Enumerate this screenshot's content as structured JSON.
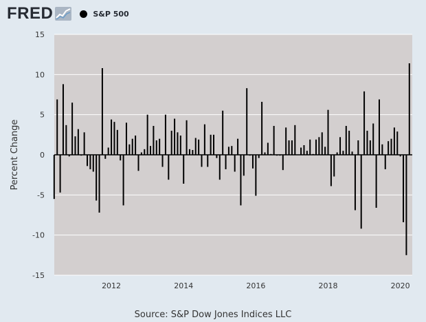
{
  "header": {
    "brand": "FRED",
    "legend_label": "S&P 500"
  },
  "source": "Source: S&P Dow Jones Indices LLC",
  "chart_data": {
    "type": "bar",
    "ylabel": "Percent Change",
    "ylim": [
      -15,
      15
    ],
    "yticks": [
      15,
      10,
      5,
      0,
      -5,
      -10,
      -15
    ],
    "xticks": [
      {
        "label": "2012",
        "at": 2012
      },
      {
        "label": "2014",
        "at": 2014
      },
      {
        "label": "2016",
        "at": 2016
      },
      {
        "label": "2018",
        "at": 2018
      },
      {
        "label": "2020",
        "at": 2020
      }
    ],
    "xlim": [
      2010.42,
      2020.33
    ],
    "start": {
      "year": 2010,
      "month": 6
    },
    "grid": true,
    "color": "#000000",
    "plot_background": "#d3cfcf",
    "values": [
      -5.5,
      6.9,
      -4.7,
      8.8,
      3.7,
      -0.2,
      6.5,
      2.3,
      3.2,
      -0.1,
      2.8,
      -1.4,
      -1.8,
      -2.1,
      -5.7,
      -7.2,
      10.8,
      -0.5,
      0.9,
      4.4,
      4.1,
      3.1,
      -0.7,
      -6.3,
      4.0,
      1.3,
      2.0,
      2.4,
      -2.0,
      0.3,
      0.7,
      5.0,
      1.1,
      3.6,
      1.8,
      2.0,
      -1.5,
      5.0,
      -3.1,
      3.0,
      4.5,
      2.8,
      2.4,
      -3.6,
      4.3,
      0.7,
      0.6,
      2.1,
      1.9,
      -1.5,
      3.8,
      -1.5,
      2.5,
      2.5,
      -0.4,
      -3.1,
      5.5,
      -1.8,
      1.0,
      1.1,
      -2.1,
      2.0,
      -6.3,
      -2.6,
      8.3,
      -0.1,
      -1.7,
      -5.1,
      -0.4,
      6.6,
      0.3,
      1.5,
      0.1,
      3.6,
      -0.1,
      -0.1,
      -1.9,
      3.4,
      1.8,
      1.8,
      3.7,
      0.0,
      0.9,
      1.2,
      0.5,
      1.9,
      0.1,
      1.9,
      2.2,
      2.8,
      1.0,
      5.6,
      -3.9,
      -2.7,
      0.3,
      2.2,
      0.5,
      3.6,
      3.0,
      0.4,
      -6.9,
      1.8,
      -9.2,
      7.9,
      3.0,
      1.8,
      3.9,
      -6.6,
      6.9,
      1.3,
      -1.8,
      1.7,
      2.0,
      3.4,
      2.9,
      -0.2,
      -8.4,
      -12.5,
      11.4
    ]
  }
}
